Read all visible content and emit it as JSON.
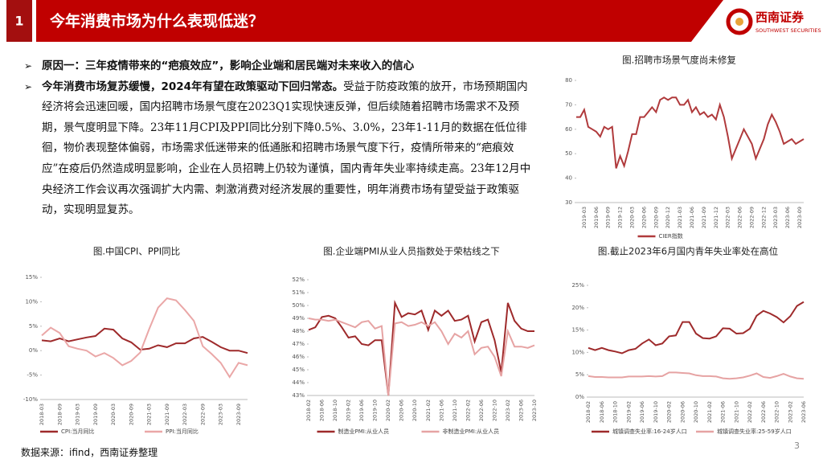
{
  "header": {
    "number": "1",
    "title": "今年消费市场为什么表现低迷？",
    "logo_cn": "西南证券",
    "logo_en": "SOUTHWEST SECURITIES"
  },
  "bullets": [
    {
      "bold": "原因一：三年疫情带来的“疤痕效应”，影响企业端和居民端对未来收入的信心"
    },
    {
      "bold": "今年消费市场复苏缓慢，2024年有望在政策驱动下回归常态。",
      "text": "受益于防疫政策的放开，市场预期国内经济将会迅速回暖，国内招聘市场景气度在2023Q1实现快速反弹，但后续随着招聘市场需求不及预期，景气度明显下降。23年11月CPI及PPI同比分别下降0.5%、3.0%，23年1-11月的数据在低位徘徊，物价表现整体偏弱，市场需求低迷带来的低通胀和招聘市场景气度下行，疫情所带来的“疤痕效应”在疫后仍然造成明显影响，企业在人员招聘上仍较为谨慎，国内青年失业率持续走高。23年12月中央经济工作会议再次强调扩大内需、刺激消费对经济发展的重要性，明年消费市场有望受益于政策驱动，实现明显复苏。"
    }
  ],
  "source": "数据来源：ifind，西南证券整理",
  "page_number": "3",
  "chart_data": [
    {
      "type": "line",
      "title": "图.招聘市场景气度尚未修复",
      "categories": [
        null,
        null,
        "2019-03",
        null,
        null,
        "2019-06",
        null,
        null,
        "2019-09",
        null,
        null,
        "2019-12",
        null,
        null,
        "2020-03",
        null,
        null,
        "2020-06",
        null,
        null,
        "2020-09",
        null,
        null,
        "2020-12",
        null,
        null,
        "2021-03",
        null,
        null,
        "2021-06",
        null,
        null,
        "2021-09",
        null,
        null,
        "2021-12",
        null,
        null,
        "2022-03",
        null,
        null,
        "2022-06",
        null,
        null,
        "2022-09",
        null,
        null,
        "2022-12",
        null,
        null,
        "2023-03",
        null,
        null,
        "2023-06",
        null,
        null,
        "2023-09",
        null
      ],
      "series": [
        {
          "name": "CIER指数",
          "color": "#b03a3c",
          "values": [
            65,
            65,
            68,
            61,
            60,
            59,
            57,
            61,
            60,
            61,
            44,
            49,
            45,
            51,
            58,
            58,
            65,
            65,
            67,
            69,
            67,
            72,
            73,
            72,
            73,
            73,
            70,
            70,
            72,
            67,
            69,
            66,
            67,
            65,
            66,
            64,
            70,
            65,
            57,
            48,
            52,
            56,
            60,
            57,
            54,
            48,
            52,
            56,
            62,
            66,
            63,
            59,
            54,
            55,
            56,
            54,
            55,
            56
          ]
        }
      ],
      "ylim": [
        30,
        80
      ],
      "yticks": [
        30,
        40,
        50,
        60,
        70,
        80
      ]
    },
    {
      "type": "line",
      "title": "图.中国CPI、PPI同比",
      "categories": [
        "2018-03",
        null,
        "2018-09",
        null,
        "2019-03",
        null,
        "2019-09",
        null,
        "2020-03",
        null,
        "2020-09",
        null,
        "2021-03",
        null,
        "2021-09",
        null,
        "2022-03",
        null,
        "2022-09",
        null,
        "2023-03",
        null,
        "2023-09",
        null
      ],
      "series": [
        {
          "name": "CPI:当月同比",
          "color": "#9e2a2b",
          "values": [
            2.1,
            1.9,
            2.5,
            1.9,
            2.3,
            2.7,
            3.0,
            4.5,
            4.3,
            2.5,
            1.7,
            0.2,
            0.4,
            1.1,
            0.7,
            1.5,
            1.5,
            2.5,
            2.8,
            1.8,
            0.7,
            0.0,
            0.0,
            -0.5
          ]
        },
        {
          "name": "PPI:当月同比",
          "color": "#eaa7a7",
          "values": [
            3.1,
            4.7,
            3.6,
            0.9,
            0.4,
            0.0,
            -1.2,
            -0.5,
            -1.5,
            -3.0,
            -2.1,
            -0.4,
            4.4,
            8.8,
            10.7,
            10.3,
            8.3,
            6.1,
            0.9,
            -0.7,
            -2.5,
            -5.4,
            -2.5,
            -3.0
          ]
        }
      ],
      "ylim": [
        -10,
        15
      ],
      "yticks": [
        {
          "value": -10,
          "label": "-10%"
        },
        {
          "value": -5,
          "label": "-5%"
        },
        {
          "value": 0,
          "label": "0%"
        },
        {
          "value": 5,
          "label": "5%"
        },
        {
          "value": 10,
          "label": "10%"
        },
        {
          "value": 15,
          "label": "15%"
        }
      ]
    },
    {
      "type": "line",
      "title": "图.企业端PMI从业人员指数处于荣枯线之下",
      "categories": [
        "2018-02",
        null,
        "2018-06",
        null,
        "2018-10",
        null,
        "2019-02",
        null,
        "2019-06",
        null,
        "2019-10",
        null,
        "2020-02",
        null,
        "2020-06",
        null,
        "2020-10",
        null,
        "2021-02",
        null,
        "2021-06",
        null,
        "2021-10",
        null,
        "2022-02",
        null,
        "2022-06",
        null,
        "2022-10",
        null,
        "2023-02",
        null,
        "2023-06",
        null,
        "2023-10"
      ],
      "series": [
        {
          "name": "制造业PMI:从业人员",
          "color": "#9e2a2b",
          "values": [
            48.1,
            48.3,
            49.1,
            49.2,
            49.0,
            48.3,
            47.5,
            47.6,
            47.0,
            46.9,
            47.3,
            47.3,
            43.0,
            50.2,
            49.1,
            49.4,
            49.3,
            49.6,
            48.1,
            49.6,
            49.2,
            49.6,
            48.8,
            48.9,
            49.2,
            47.2,
            48.7,
            48.9,
            47.3,
            44.8,
            50.2,
            48.8,
            48.2,
            48.0,
            48.0
          ]
        },
        {
          "name": "非制造业PMI:从业人员",
          "color": "#e6a3a3",
          "values": [
            49.0,
            48.9,
            48.9,
            48.8,
            48.9,
            48.7,
            48.5,
            48.3,
            48.7,
            48.8,
            48.2,
            48.4,
            43.0,
            48.6,
            48.7,
            48.4,
            48.5,
            48.7,
            48.4,
            48.7,
            48.0,
            47.0,
            47.8,
            47.5,
            48.0,
            46.2,
            46.7,
            46.8,
            46.0,
            44.5,
            48.0,
            46.8,
            46.8,
            46.7,
            46.9
          ]
        }
      ],
      "ylim": [
        43,
        52
      ],
      "yticks": [
        {
          "value": 43,
          "label": "43%"
        },
        {
          "value": 44,
          "label": "44%"
        },
        {
          "value": 45,
          "label": "45%"
        },
        {
          "value": 46,
          "label": "46%"
        },
        {
          "value": 47,
          "label": "47%"
        },
        {
          "value": 48,
          "label": "48%"
        },
        {
          "value": 49,
          "label": "49%"
        },
        {
          "value": 50,
          "label": "50%"
        },
        {
          "value": 51,
          "label": "51%"
        },
        {
          "value": 52,
          "label": "52%"
        }
      ]
    },
    {
      "type": "line",
      "title": "图.截止2023年6月国内青年失业率处在高位",
      "categories": [
        "2018-02",
        null,
        "2018-06",
        null,
        "2018-10",
        null,
        "2019-02",
        null,
        "2019-06",
        null,
        "2019-10",
        null,
        "2020-02",
        null,
        "2020-06",
        null,
        "2020-10",
        null,
        "2021-02",
        null,
        "2021-06",
        null,
        "2021-10",
        null,
        "2022-02",
        null,
        "2022-06",
        null,
        "2022-10",
        null,
        "2023-02",
        null,
        "2023-06"
      ],
      "series": [
        {
          "name": "城镇调查失业率:16-24岁人口",
          "color": "#9e2a2b",
          "values": [
            11.0,
            10.5,
            11.0,
            10.5,
            10.2,
            9.8,
            10.5,
            10.8,
            12.0,
            12.9,
            11.6,
            12.0,
            13.6,
            13.8,
            16.8,
            16.8,
            14.2,
            13.2,
            13.1,
            13.6,
            15.4,
            15.3,
            14.2,
            14.3,
            15.3,
            18.2,
            19.3,
            18.7,
            17.9,
            16.7,
            18.1,
            20.4,
            21.3
          ]
        },
        {
          "name": "城镇调查失业率:25-59岁人口",
          "color": "#e6a3a3",
          "values": [
            4.7,
            4.5,
            4.5,
            4.4,
            4.4,
            4.4,
            4.6,
            4.6,
            4.6,
            4.7,
            4.6,
            4.7,
            5.5,
            5.5,
            5.4,
            5.3,
            4.9,
            4.7,
            4.7,
            4.6,
            4.2,
            4.1,
            4.2,
            4.4,
            4.8,
            5.3,
            4.5,
            4.3,
            4.7,
            5.2,
            4.6,
            4.2,
            4.1
          ]
        }
      ],
      "ylim": [
        0,
        25
      ],
      "yticks": [
        {
          "value": 0,
          "label": "0%"
        },
        {
          "value": 5,
          "label": "5%"
        },
        {
          "value": 10,
          "label": "10%"
        },
        {
          "value": 15,
          "label": "15%"
        },
        {
          "value": 20,
          "label": "20%"
        },
        {
          "value": 25,
          "label": "25%"
        }
      ]
    }
  ]
}
